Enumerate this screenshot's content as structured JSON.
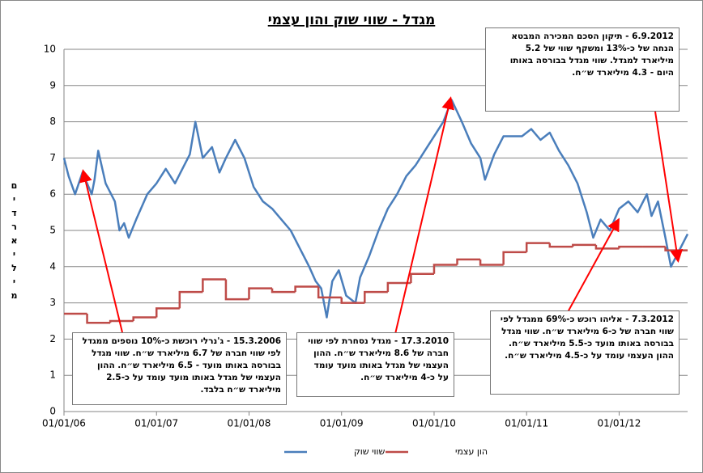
{
  "chart_data": {
    "type": "line",
    "title": "מגדל - שווי שוק והון עצמי",
    "ylabel": "מיליארדים",
    "xlim": [
      2006,
      2012.74
    ],
    "ylim": [
      0,
      10
    ],
    "xticks": [
      {
        "value": 2006,
        "label": "01/01/06"
      },
      {
        "value": 2007,
        "label": "01/01/07"
      },
      {
        "value": 2008,
        "label": "01/01/08"
      },
      {
        "value": 2009,
        "label": "01/01/09"
      },
      {
        "value": 2010,
        "label": "01/01/10"
      },
      {
        "value": 2011,
        "label": "01/01/11"
      },
      {
        "value": 2012,
        "label": "01/01/12"
      }
    ],
    "yticks": [
      0,
      1,
      2,
      3,
      4,
      5,
      6,
      7,
      8,
      9,
      10
    ],
    "grid": true,
    "legend": "bottom",
    "series": [
      {
        "name": "שווי שוק",
        "color": "#4a7ebb",
        "drawstyle": "line",
        "x": [
          2006.0,
          2006.05,
          2006.12,
          2006.2,
          2006.3,
          2006.33,
          2006.37,
          2006.45,
          2006.55,
          2006.6,
          2006.65,
          2006.7,
          2006.78,
          2006.9,
          2007.0,
          2007.1,
          2007.2,
          2007.3,
          2007.36,
          2007.42,
          2007.5,
          2007.6,
          2007.68,
          2007.75,
          2007.85,
          2007.95,
          2008.05,
          2008.15,
          2008.25,
          2008.35,
          2008.45,
          2008.55,
          2008.65,
          2008.72,
          2008.78,
          2008.84,
          2008.9,
          2008.97,
          2009.05,
          2009.15,
          2009.2,
          2009.3,
          2009.4,
          2009.5,
          2009.6,
          2009.7,
          2009.8,
          2009.9,
          2010.0,
          2010.1,
          2010.19,
          2010.3,
          2010.4,
          2010.5,
          2010.55,
          2010.65,
          2010.75,
          2010.85,
          2010.95,
          2011.05,
          2011.15,
          2011.25,
          2011.35,
          2011.45,
          2011.55,
          2011.65,
          2011.72,
          2011.8,
          2011.9,
          2012.0,
          2012.1,
          2012.2,
          2012.3,
          2012.35,
          2012.42,
          2012.5,
          2012.56,
          2012.62,
          2012.68,
          2012.74
        ],
        "values": [
          7.0,
          6.5,
          6.0,
          6.6,
          6.0,
          6.4,
          7.2,
          6.3,
          5.8,
          5.0,
          5.2,
          4.8,
          5.3,
          6.0,
          6.3,
          6.7,
          6.3,
          6.8,
          7.1,
          8.0,
          7.0,
          7.3,
          6.6,
          7.0,
          7.5,
          7.0,
          6.2,
          5.8,
          5.6,
          5.3,
          5.0,
          4.5,
          4.0,
          3.6,
          3.4,
          2.6,
          3.6,
          3.9,
          3.2,
          3.0,
          3.7,
          4.3,
          5.0,
          5.6,
          6.0,
          6.5,
          6.8,
          7.2,
          7.6,
          8.0,
          8.6,
          8.0,
          7.4,
          7.0,
          6.4,
          7.1,
          7.6,
          7.6,
          7.6,
          7.8,
          7.5,
          7.7,
          7.2,
          6.8,
          6.3,
          5.5,
          4.8,
          5.3,
          5.0,
          5.6,
          5.8,
          5.5,
          6.0,
          5.4,
          5.8,
          4.8,
          4.0,
          4.3,
          4.6,
          4.9
        ]
      },
      {
        "name": "הון עצמי",
        "color": "#be4b48",
        "drawstyle": "steps-post",
        "x": [
          2006.0,
          2006.25,
          2006.5,
          2006.75,
          2007.0,
          2007.25,
          2007.5,
          2007.75,
          2008.0,
          2008.25,
          2008.5,
          2008.75,
          2009.0,
          2009.25,
          2009.5,
          2009.75,
          2010.0,
          2010.25,
          2010.5,
          2010.75,
          2011.0,
          2011.25,
          2011.5,
          2011.75,
          2012.0,
          2012.25,
          2012.5
        ],
        "values": [
          2.7,
          2.45,
          2.5,
          2.6,
          2.85,
          3.3,
          3.65,
          3.1,
          3.4,
          3.3,
          3.45,
          3.15,
          3.0,
          3.3,
          3.55,
          3.8,
          4.05,
          4.2,
          4.05,
          4.4,
          4.65,
          4.55,
          4.6,
          4.5,
          4.55,
          4.55,
          4.45
        ]
      }
    ],
    "annotations": [
      {
        "text": "15.3.2006 - ג'נרלי רוכשת כ-10% נוספים ממגדל לפי שווי חברה של 6.7 מיליארד ש״ח. שווי מגדל בבורסה באותו מועד - 6.5 מיליארד ש״ח. ההון העצמי של מגדל באותו מועד עומד על כ-2.5 מיליארד ש״ח בלבד."
      },
      {
        "text": "17.3.2010 - מגדל נסחרת לפי שווי חברה של 8.6 מיליארד ש״ח. ההון העצמי של מגדל באותו מועד עומד על כ-4 מיליארד ש״ח."
      },
      {
        "text": "6.9.2012 - תיקון הסכם המכירה המבטא הנחה של כ-13% ומשקף שווי של 5.2 מיליארד למגדל. שווי מגדל בבורסה באותו היום - 4.3 מיליארד ש״ח."
      },
      {
        "text": "7.3.2012 - אליהו רוכש כ-69% ממגדל לפי שווי חברה של כ-6 מיליארד ש״ח. שווי מגדל בבורסה באותו מועד כ-5.5 מיליארד ש״ח. ההון העצמי עומד על כ-4.5 מיליארד ש״ח."
      }
    ]
  }
}
